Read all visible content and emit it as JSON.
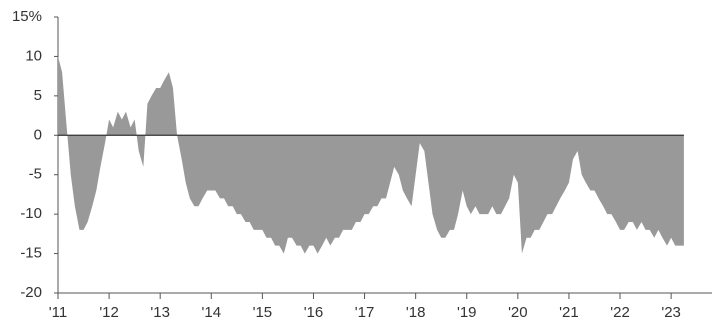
{
  "chart_data": {
    "type": "area",
    "color": "#999999",
    "x": [
      2011,
      2011.08,
      2011.17,
      2011.25,
      2011.33,
      2011.42,
      2011.5,
      2011.58,
      2011.67,
      2011.75,
      2011.83,
      2011.92,
      2012,
      2012.08,
      2012.17,
      2012.25,
      2012.33,
      2012.42,
      2012.5,
      2012.58,
      2012.67,
      2012.75,
      2012.83,
      2012.92,
      2013,
      2013.08,
      2013.17,
      2013.25,
      2013.33,
      2013.42,
      2013.5,
      2013.58,
      2013.67,
      2013.75,
      2013.83,
      2013.92,
      2014,
      2014.08,
      2014.17,
      2014.25,
      2014.33,
      2014.42,
      2014.5,
      2014.58,
      2014.67,
      2014.75,
      2014.83,
      2014.92,
      2015,
      2015.08,
      2015.17,
      2015.25,
      2015.33,
      2015.42,
      2015.5,
      2015.58,
      2015.67,
      2015.75,
      2015.83,
      2015.92,
      2016,
      2016.08,
      2016.17,
      2016.25,
      2016.33,
      2016.42,
      2016.5,
      2016.58,
      2016.67,
      2016.75,
      2016.83,
      2016.92,
      2017,
      2017.08,
      2017.17,
      2017.25,
      2017.33,
      2017.42,
      2017.5,
      2017.58,
      2017.67,
      2017.75,
      2017.83,
      2017.92,
      2018,
      2018.08,
      2018.17,
      2018.25,
      2018.33,
      2018.42,
      2018.5,
      2018.58,
      2018.67,
      2018.75,
      2018.83,
      2018.92,
      2019,
      2019.08,
      2019.17,
      2019.25,
      2019.33,
      2019.42,
      2019.5,
      2019.58,
      2019.67,
      2019.75,
      2019.83,
      2019.92,
      2020,
      2020.08,
      2020.17,
      2020.25,
      2020.33,
      2020.42,
      2020.5,
      2020.58,
      2020.67,
      2020.75,
      2020.83,
      2020.92,
      2021,
      2021.08,
      2021.17,
      2021.25,
      2021.33,
      2021.42,
      2021.5,
      2021.58,
      2021.67,
      2021.75,
      2021.83,
      2021.92,
      2022,
      2022.08,
      2022.17,
      2022.25,
      2022.33,
      2022.42,
      2022.5,
      2022.58,
      2022.67,
      2022.75,
      2022.83,
      2022.92,
      2023,
      2023.08,
      2023.17,
      2023.25
    ],
    "values": [
      10,
      8,
      1,
      -5,
      -9,
      -12,
      -12,
      -11,
      -9,
      -7,
      -4,
      -1,
      2,
      1,
      3,
      2,
      3,
      1,
      2,
      -2,
      -4,
      4,
      5,
      6,
      6,
      7,
      8,
      6,
      0,
      -3,
      -6,
      -8,
      -9,
      -9,
      -8,
      -7,
      -7,
      -7,
      -8,
      -8,
      -9,
      -9,
      -10,
      -10,
      -11,
      -11,
      -12,
      -12,
      -12,
      -13,
      -13,
      -14,
      -14,
      -15,
      -13,
      -13,
      -14,
      -14,
      -15,
      -14,
      -14,
      -15,
      -14,
      -13,
      -14,
      -13,
      -13,
      -12,
      -12,
      -12,
      -11,
      -11,
      -10,
      -10,
      -9,
      -9,
      -8,
      -8,
      -6,
      -4,
      -5,
      -7,
      -8,
      -9,
      -5,
      -1,
      -2,
      -6,
      -10,
      -12,
      -13,
      -13,
      -12,
      -12,
      -10,
      -7,
      -9,
      -10,
      -9,
      -10,
      -10,
      -10,
      -9,
      -10,
      -10,
      -9,
      -8,
      -5,
      -6,
      -15,
      -13,
      -13,
      -12,
      -12,
      -11,
      -10,
      -10,
      -9,
      -8,
      -7,
      -6,
      -3,
      -2,
      -5,
      -6,
      -7,
      -7,
      -8,
      -9,
      -10,
      -10,
      -11,
      -12,
      -12,
      -11,
      -11,
      -12,
      -11,
      -12,
      -12,
      -13,
      -12,
      -13,
      -14,
      -13,
      -14,
      -14,
      -14
    ],
    "xlim": [
      2011,
      2023.8
    ],
    "xticks": [
      {
        "value": 2011,
        "label": "'11"
      },
      {
        "value": 2012,
        "label": "'12"
      },
      {
        "value": 2013,
        "label": "'13"
      },
      {
        "value": 2014,
        "label": "'14"
      },
      {
        "value": 2015,
        "label": "'15"
      },
      {
        "value": 2016,
        "label": "'16"
      },
      {
        "value": 2017,
        "label": "'17"
      },
      {
        "value": 2018,
        "label": "'18"
      },
      {
        "value": 2019,
        "label": "'19"
      },
      {
        "value": 2020,
        "label": "'20"
      },
      {
        "value": 2021,
        "label": "'21"
      },
      {
        "value": 2022,
        "label": "'22"
      },
      {
        "value": 2023,
        "label": "'23"
      }
    ],
    "ylim": [
      -20,
      15
    ],
    "yticks": [
      -20,
      -15,
      -10,
      -5,
      0,
      5,
      10,
      {
        "value": 15,
        "label": "15%"
      }
    ]
  }
}
